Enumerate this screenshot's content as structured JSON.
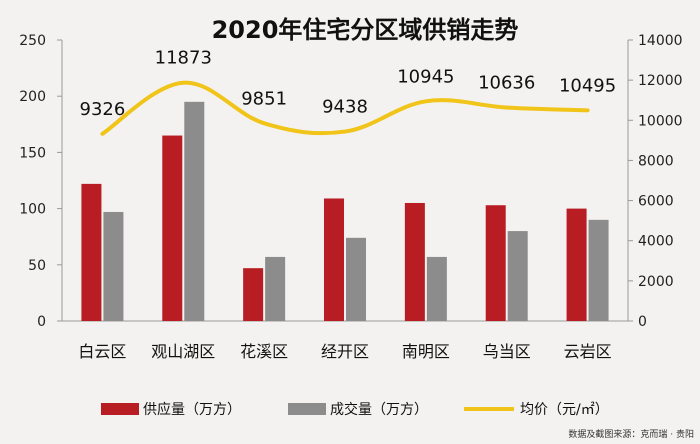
{
  "chart_data": {
    "type": "bar",
    "title": "2020年住宅分区域供销走势",
    "categories": [
      "白云区",
      "观山湖区",
      "花溪区",
      "经开区",
      "南明区",
      "乌当区",
      "云岩区"
    ],
    "series": [
      {
        "name": "供应量（万方）",
        "type": "bar",
        "axis": "left",
        "color": "#b81d24",
        "values": [
          122,
          165,
          47,
          109,
          105,
          103,
          100
        ]
      },
      {
        "name": "成交量（万方）",
        "type": "bar",
        "axis": "left",
        "color": "#8c8c8c",
        "values": [
          97,
          195,
          57,
          74,
          57,
          80,
          90
        ]
      },
      {
        "name": "均价（元/㎡）",
        "type": "line",
        "axis": "right",
        "color": "#f0c419",
        "values": [
          9326,
          11873,
          9851,
          9438,
          10945,
          10636,
          10495
        ],
        "labels": [
          "9326",
          "11873",
          "9851",
          "9438",
          "10945",
          "10636",
          "10495"
        ]
      }
    ],
    "y_left": {
      "ylim": [
        0,
        250
      ],
      "ticks": [
        "0",
        "50",
        "100",
        "150",
        "200",
        "250"
      ]
    },
    "y_right": {
      "ylim": [
        0,
        14000
      ],
      "ticks": [
        "0",
        "2000",
        "4000",
        "6000",
        "8000",
        "10000",
        "12000",
        "14000"
      ]
    },
    "grid": false,
    "legend_position": "bottom"
  },
  "source_note": "数据及截图来源：克而瑞 · 贵阳"
}
